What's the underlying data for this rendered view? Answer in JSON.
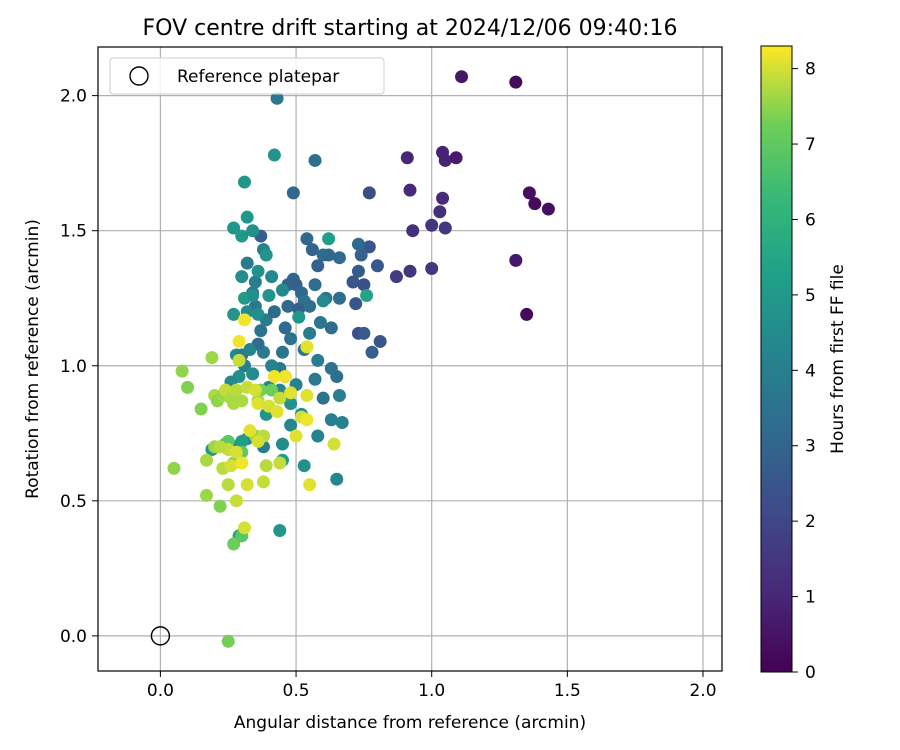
{
  "chart_data": {
    "type": "scatter",
    "title": "FOV centre drift starting at 2024/12/06 09:40:16",
    "xlabel": "Angular distance from reference (arcmin)",
    "ylabel": "Rotation from reference (arcmin)",
    "xlim": [
      -0.23,
      2.07
    ],
    "ylim": [
      -0.13,
      2.18
    ],
    "xticks": [
      "0.0",
      "0.5",
      "1.0",
      "1.5",
      "2.0"
    ],
    "yticks": [
      "0.0",
      "0.5",
      "1.0",
      "1.5",
      "2.0"
    ],
    "grid": true,
    "legend": {
      "position": "top-left",
      "entries": [
        {
          "label": "Reference platepar",
          "marker": "open-circle"
        }
      ]
    },
    "reference_point": {
      "x": 0.0,
      "y": 0.0
    },
    "colorbar": {
      "label": "Hours from first FF file",
      "range": [
        0,
        8.3
      ],
      "ticks": [
        "0",
        "1",
        "2",
        "3",
        "4",
        "5",
        "6",
        "7",
        "8"
      ],
      "colormap": "viridis"
    },
    "series": [
      {
        "points": [
          [
            1.11,
            2.07,
            0.6
          ],
          [
            1.31,
            2.05,
            0.3
          ],
          [
            1.36,
            1.64,
            0.4
          ],
          [
            1.38,
            1.6,
            0.3
          ],
          [
            1.43,
            1.58,
            0.4
          ],
          [
            1.31,
            1.39,
            0.6
          ],
          [
            1.35,
            1.19,
            0.2
          ],
          [
            1.04,
            1.79,
            0.9
          ],
          [
            1.05,
            1.76,
            0.9
          ],
          [
            1.09,
            1.77,
            0.7
          ],
          [
            0.91,
            1.77,
            1.0
          ],
          [
            0.92,
            1.65,
            1.1
          ],
          [
            1.04,
            1.62,
            1.1
          ],
          [
            1.03,
            1.57,
            1.3
          ],
          [
            0.93,
            1.5,
            1.3
          ],
          [
            1.0,
            1.52,
            1.4
          ],
          [
            1.05,
            1.51,
            1.5
          ],
          [
            0.92,
            1.35,
            1.4
          ],
          [
            1.0,
            1.36,
            1.5
          ],
          [
            0.87,
            1.33,
            1.7
          ],
          [
            0.77,
            1.64,
            2.2
          ],
          [
            0.77,
            1.44,
            2.5
          ],
          [
            0.8,
            1.37,
            2.5
          ],
          [
            0.74,
            1.41,
            2.9
          ],
          [
            0.73,
            1.45,
            3.2
          ],
          [
            0.71,
            1.31,
            2.5
          ],
          [
            0.73,
            1.35,
            2.7
          ],
          [
            0.75,
            1.3,
            2.3
          ],
          [
            0.72,
            1.23,
            2.5
          ],
          [
            0.73,
            1.12,
            2.3
          ],
          [
            0.75,
            1.12,
            2.6
          ],
          [
            0.81,
            1.09,
            2.5
          ],
          [
            0.78,
            1.05,
            2.8
          ],
          [
            0.43,
            1.99,
            3.7
          ],
          [
            0.57,
            1.76,
            3.4
          ],
          [
            0.49,
            1.64,
            3.1
          ],
          [
            0.37,
            1.48,
            2.8
          ],
          [
            0.54,
            1.47,
            3.1
          ],
          [
            0.56,
            1.43,
            3.0
          ],
          [
            0.6,
            1.41,
            3.3
          ],
          [
            0.62,
            1.41,
            3.1
          ],
          [
            0.66,
            1.4,
            3.2
          ],
          [
            0.58,
            1.37,
            2.9
          ],
          [
            0.49,
            1.32,
            3.0
          ],
          [
            0.5,
            1.3,
            2.8
          ],
          [
            0.47,
            1.3,
            2.9
          ],
          [
            0.52,
            1.27,
            3.1
          ],
          [
            0.53,
            1.24,
            3.5
          ],
          [
            0.57,
            1.3,
            3.3
          ],
          [
            0.61,
            1.25,
            3.6
          ],
          [
            0.66,
            1.25,
            3.3
          ],
          [
            0.63,
            1.14,
            3.3
          ],
          [
            0.47,
            1.22,
            3.2
          ],
          [
            0.51,
            1.21,
            2.8
          ],
          [
            0.55,
            1.22,
            3.4
          ],
          [
            0.46,
            1.14,
            3.2
          ],
          [
            0.48,
            1.1,
            3.5
          ],
          [
            0.45,
            1.05,
            3.6
          ],
          [
            0.53,
            1.06,
            3.6
          ],
          [
            0.55,
            1.12,
            4.0
          ],
          [
            0.59,
            1.16,
            3.7
          ],
          [
            0.58,
            1.02,
            4.0
          ],
          [
            0.63,
            0.99,
            3.5
          ],
          [
            0.65,
            0.96,
            3.4
          ],
          [
            0.6,
            0.88,
            3.6
          ],
          [
            0.57,
            0.95,
            3.8
          ],
          [
            0.58,
            0.74,
            4.2
          ],
          [
            0.63,
            0.8,
            4.0
          ],
          [
            0.67,
            0.79,
            4.2
          ],
          [
            0.66,
            0.89,
            4.0
          ],
          [
            0.5,
            0.93,
            4.1
          ],
          [
            0.46,
            0.96,
            3.5
          ],
          [
            0.44,
            0.99,
            3.8
          ],
          [
            0.41,
            1.0,
            4.2
          ],
          [
            0.38,
            1.05,
            3.9
          ],
          [
            0.36,
            1.08,
            3.3
          ],
          [
            0.37,
            1.13,
            3.6
          ],
          [
            0.39,
            1.17,
            3.9
          ],
          [
            0.42,
            1.2,
            3.2
          ],
          [
            0.35,
            1.22,
            3.7
          ],
          [
            0.34,
            1.27,
            3.8
          ],
          [
            0.35,
            1.31,
            4.0
          ],
          [
            0.32,
            1.38,
            3.9
          ],
          [
            0.3,
            1.33,
            4.6
          ],
          [
            0.36,
            1.35,
            4.7
          ],
          [
            0.38,
            1.43,
            4.2
          ],
          [
            0.41,
            1.33,
            4.4
          ],
          [
            0.32,
            1.55,
            5.0
          ],
          [
            0.27,
            1.51,
            4.9
          ],
          [
            0.3,
            1.48,
            5.0
          ],
          [
            0.34,
            1.5,
            4.7
          ],
          [
            0.39,
            1.41,
            4.8
          ],
          [
            0.62,
            1.47,
            5.2
          ],
          [
            0.76,
            1.26,
            5.4
          ],
          [
            0.31,
            1.68,
            4.9
          ],
          [
            0.42,
            1.78,
            4.8
          ],
          [
            0.6,
            1.24,
            4.5
          ],
          [
            0.51,
            1.18,
            4.9
          ],
          [
            0.45,
            1.28,
            4.4
          ],
          [
            0.4,
            1.26,
            4.8
          ],
          [
            0.27,
            1.19,
            4.8
          ],
          [
            0.32,
            1.2,
            4.4
          ],
          [
            0.36,
            1.19,
            4.6
          ],
          [
            0.31,
            1.25,
            5.1
          ],
          [
            0.34,
            1.26,
            4.7
          ],
          [
            0.28,
            1.04,
            4.4
          ],
          [
            0.31,
            1.0,
            4.0
          ],
          [
            0.34,
            0.97,
            4.5
          ],
          [
            0.29,
            0.96,
            4.6
          ],
          [
            0.26,
            0.94,
            4.4
          ],
          [
            0.3,
            1.04,
            3.8
          ],
          [
            0.33,
            1.06,
            4.2
          ],
          [
            0.4,
            0.92,
            4.1
          ],
          [
            0.44,
            0.91,
            4.3
          ],
          [
            0.48,
            0.86,
            4.8
          ],
          [
            0.48,
            0.78,
            4.4
          ],
          [
            0.45,
            0.71,
            4.6
          ],
          [
            0.52,
            0.82,
            4.6
          ],
          [
            0.47,
            0.89,
            5.1
          ],
          [
            0.39,
            0.82,
            4.8
          ],
          [
            0.19,
            0.69,
            4.8
          ],
          [
            0.24,
            0.71,
            4.2
          ],
          [
            0.27,
            0.7,
            4.5
          ],
          [
            0.29,
            0.7,
            4.1
          ],
          [
            0.32,
            0.73,
            4.4
          ],
          [
            0.38,
            0.7,
            4.0
          ],
          [
            0.3,
            0.72,
            5.2
          ],
          [
            0.53,
            0.63,
            4.7
          ],
          [
            0.65,
            0.58,
            4.3
          ],
          [
            0.44,
            0.39,
            4.9
          ],
          [
            0.29,
            0.37,
            5.3
          ],
          [
            0.45,
            0.65,
            5.2
          ],
          [
            0.25,
            0.72,
            6.9
          ],
          [
            0.3,
            0.68,
            7.0
          ],
          [
            0.37,
            0.91,
            7.3
          ],
          [
            0.36,
            0.87,
            7.6
          ],
          [
            0.41,
            0.91,
            7.2
          ],
          [
            0.35,
            0.74,
            7.5
          ],
          [
            0.27,
            0.64,
            7.4
          ],
          [
            0.22,
            0.48,
            7.4
          ],
          [
            0.27,
            0.34,
            7.2
          ],
          [
            0.3,
            0.37,
            6.9
          ],
          [
            0.31,
            0.4,
            8.0
          ],
          [
            0.25,
            -0.02,
            7.3
          ],
          [
            0.05,
            0.62,
            7.5
          ],
          [
            0.08,
            0.98,
            7.5
          ],
          [
            0.1,
            0.92,
            7.4
          ],
          [
            0.15,
            0.84,
            7.4
          ],
          [
            0.19,
            1.03,
            7.6
          ],
          [
            0.2,
            0.89,
            7.7
          ],
          [
            0.21,
            0.87,
            7.5
          ],
          [
            0.23,
            0.89,
            7.6
          ],
          [
            0.24,
            0.91,
            7.9
          ],
          [
            0.26,
            0.88,
            7.7
          ],
          [
            0.27,
            0.86,
            7.7
          ],
          [
            0.28,
            0.91,
            7.8
          ],
          [
            0.3,
            0.87,
            7.7
          ],
          [
            0.32,
            0.92,
            7.9
          ],
          [
            0.35,
            0.91,
            8.0
          ],
          [
            0.36,
            0.86,
            8.1
          ],
          [
            0.38,
            0.74,
            7.8
          ],
          [
            0.4,
            0.85,
            8.0
          ],
          [
            0.43,
            0.83,
            8.1
          ],
          [
            0.44,
            0.88,
            7.9
          ],
          [
            0.46,
            0.96,
            8.2
          ],
          [
            0.48,
            0.9,
            8.1
          ],
          [
            0.5,
            0.74,
            8.1
          ],
          [
            0.52,
            0.81,
            8.0
          ],
          [
            0.54,
            0.89,
            8.1
          ],
          [
            0.54,
            0.8,
            8.2
          ],
          [
            0.64,
            0.71,
            8.0
          ],
          [
            0.54,
            1.07,
            8.1
          ],
          [
            0.42,
            0.96,
            8.2
          ],
          [
            0.31,
            1.17,
            8.2
          ],
          [
            0.29,
            1.02,
            7.9
          ],
          [
            0.29,
            1.09,
            8.2
          ],
          [
            0.17,
            0.52,
            7.6
          ],
          [
            0.25,
            0.56,
            7.8
          ],
          [
            0.28,
            0.5,
            7.9
          ],
          [
            0.32,
            0.56,
            8.0
          ],
          [
            0.38,
            0.57,
            7.9
          ],
          [
            0.17,
            0.65,
            7.7
          ],
          [
            0.23,
            0.62,
            7.8
          ],
          [
            0.25,
            0.69,
            7.9
          ],
          [
            0.26,
            0.63,
            8.0
          ],
          [
            0.28,
            0.68,
            8.0
          ],
          [
            0.3,
            0.64,
            8.2
          ],
          [
            0.33,
            0.76,
            8.1
          ],
          [
            0.36,
            0.72,
            8.0
          ],
          [
            0.39,
            0.63,
            7.8
          ],
          [
            0.44,
            0.64,
            7.9
          ],
          [
            0.55,
            0.56,
            8.1
          ],
          [
            0.2,
            0.7,
            7.6
          ],
          [
            0.22,
            0.7,
            7.8
          ]
        ]
      }
    ]
  }
}
